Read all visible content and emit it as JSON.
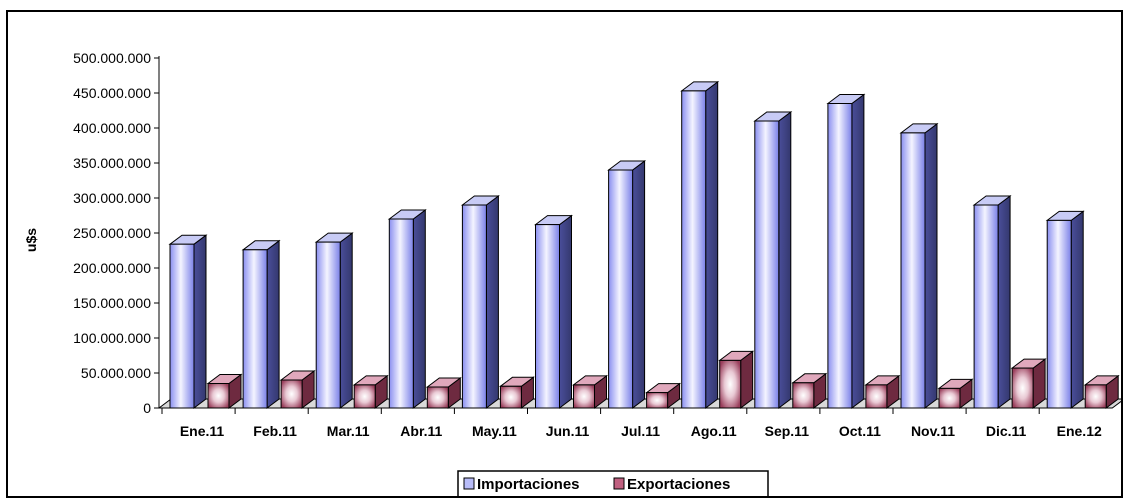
{
  "chart_data": {
    "type": "bar",
    "ylabel": "u$s",
    "ylim": [
      0,
      500000000
    ],
    "yticks": [
      "0",
      "50.000.000",
      "100.000.000",
      "150.000.000",
      "200.000.000",
      "250.000.000",
      "300.000.000",
      "350.000.000",
      "400.000.000",
      "450.000.000",
      "500.000.000"
    ],
    "categories": [
      "Ene.11",
      "Feb.11",
      "Mar.11",
      "Abr.11",
      "May.11",
      "Jun.11",
      "Jul.11",
      "Ago.11",
      "Sep.11",
      "Oct.11",
      "Nov.11",
      "Dic.11",
      "Ene.12"
    ],
    "series": [
      {
        "name": "Importaciones",
        "values": [
          234000000,
          226000000,
          237000000,
          270000000,
          290000000,
          262000000,
          340000000,
          453000000,
          410000000,
          435000000,
          393000000,
          290000000,
          268000000
        ]
      },
      {
        "name": "Exportaciones",
        "values": [
          35000000,
          40000000,
          33000000,
          30000000,
          31000000,
          33000000,
          22000000,
          68000000,
          36000000,
          33000000,
          28000000,
          57000000,
          33000000
        ]
      }
    ],
    "legend_position": "bottom-center",
    "grid": false,
    "colors": {
      "importaciones": "#b8bcf8",
      "exportaciones": "#c06080"
    }
  }
}
